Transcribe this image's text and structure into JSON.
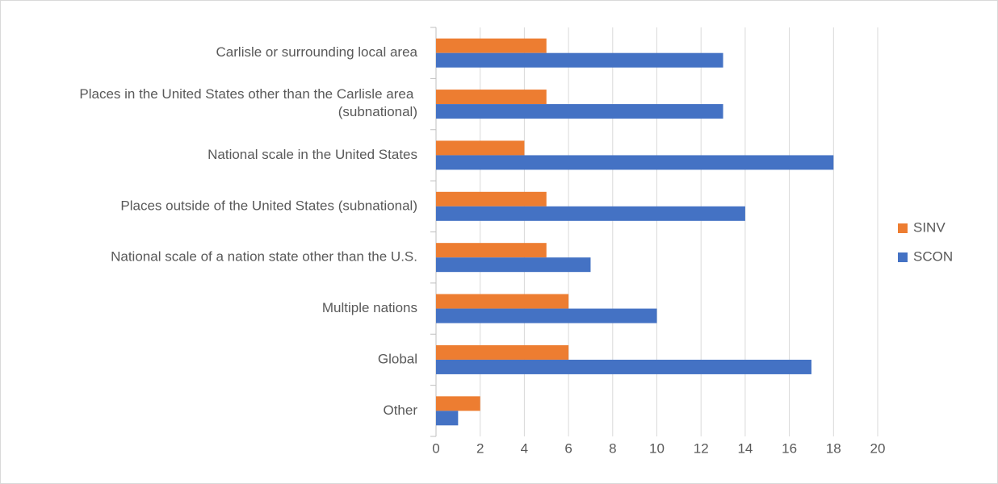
{
  "chart_data": {
    "type": "hbar",
    "categories": [
      "Carlisle or surrounding local area",
      "Places in the United States other than the Carlisle area (subnational)",
      "National scale in the United States",
      "Places outside of the United States (subnational)",
      "National scale of a nation state other than the U.S.",
      "Multiple nations",
      "Global",
      "Other"
    ],
    "series": [
      {
        "name": "SINV",
        "color": "#ed7d31",
        "values": [
          5,
          5,
          4,
          5,
          5,
          6,
          6,
          2
        ]
      },
      {
        "name": "SCON",
        "color": "#4472c4",
        "values": [
          13,
          13,
          18,
          14,
          7,
          10,
          17,
          1
        ]
      }
    ],
    "xlim": [
      0,
      20
    ],
    "xticks": [
      0,
      2,
      4,
      6,
      8,
      10,
      12,
      14,
      16,
      18,
      20
    ],
    "grid": true,
    "legend": "right"
  }
}
